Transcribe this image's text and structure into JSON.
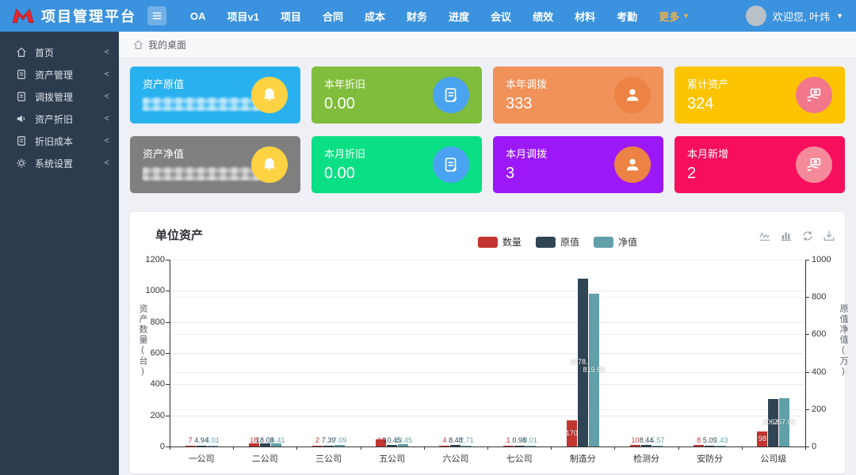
{
  "topbar": {
    "title": "项目管理平台",
    "nav": [
      "OA",
      "项目v1",
      "项目",
      "合同",
      "成本",
      "财务",
      "进度",
      "会议",
      "绩效",
      "材料",
      "考勤"
    ],
    "more_label": "更多",
    "more_color": "#f3b245",
    "welcome": "欢迎您, 叶炜",
    "bar_color": "#3b92de"
  },
  "sidebar": {
    "items": [
      {
        "icon": "home-icon",
        "label": "首页"
      },
      {
        "icon": "file-icon",
        "label": "资产管理"
      },
      {
        "icon": "file-icon",
        "label": "调拨管理"
      },
      {
        "icon": "volume-icon",
        "label": "资产折旧"
      },
      {
        "icon": "file-icon",
        "label": "折旧成本"
      },
      {
        "icon": "gear-icon",
        "label": "系统设置"
      }
    ],
    "chevron": "<"
  },
  "breadcrumb": "我的桌面",
  "cards": [
    {
      "label": "资产原值",
      "value": "",
      "masked": true,
      "color": "#29b1ef",
      "icon": "bell-icon",
      "icon_bg": "#fdd243"
    },
    {
      "label": "本年折旧",
      "value": "0.00",
      "masked": false,
      "color": "#80bd3c",
      "icon": "clipboard-icon",
      "icon_bg": "#4aa3f0"
    },
    {
      "label": "本年调拨",
      "value": "333",
      "masked": false,
      "color": "#f0925a",
      "icon": "user-icon",
      "icon_bg": "#ec8243"
    },
    {
      "label": "累计资产",
      "value": "324",
      "masked": false,
      "color": "#fcc400",
      "icon": "hand-coin-icon",
      "icon_bg": "#f2778b"
    },
    {
      "label": "资产净值",
      "value": "",
      "masked": true,
      "color": "#7f7f7f",
      "icon": "bell-icon",
      "icon_bg": "#fdd243"
    },
    {
      "label": "本月折旧",
      "value": "0.00",
      "masked": false,
      "color": "#0bdf85",
      "icon": "clipboard-icon",
      "icon_bg": "#4aa3f0"
    },
    {
      "label": "本月调拨",
      "value": "3",
      "masked": false,
      "color": "#9c18f8",
      "icon": "user-icon",
      "icon_bg": "#ec8243"
    },
    {
      "label": "本月新增",
      "value": "2",
      "masked": false,
      "color": "#f70f5e",
      "icon": "hand-coin-icon",
      "icon_bg": "#f58a9b"
    }
  ],
  "chart_data": {
    "type": "bar",
    "title": "单位资产",
    "categories": [
      "一公司",
      "二公司",
      "三公司",
      "五公司",
      "六公司",
      "七公司",
      "制造分",
      "检测分",
      "安防分",
      "公司级"
    ],
    "series": [
      {
        "name": "数量",
        "color": "#c23531",
        "axis": "left",
        "values": [
          7,
          18,
          2,
          44,
          4,
          1,
          170,
          10,
          8,
          98
        ]
      },
      {
        "name": "原值",
        "color": "#2f4554",
        "axis": "left",
        "values": [
          4.94,
          18.08,
          7.39,
          10.45,
          8.48,
          0.98,
          1078.36,
          8.44,
          5.09,
          306.62
        ]
      },
      {
        "name": "净值",
        "color": "#61a0a8",
        "axis": "right",
        "values": [
          4.01,
          16.41,
          7.09,
          13.45,
          2.71,
          0.01,
          819.69,
          5.57,
          1.43,
          257.02
        ]
      }
    ],
    "left_axis": {
      "label": "资产数量(台)",
      "ticks": [
        0,
        200,
        400,
        600,
        800,
        1000,
        1200
      ],
      "max": 1200
    },
    "right_axis": {
      "label": "原值净值(万)",
      "ticks": [
        0,
        200,
        400,
        600,
        800,
        1000
      ],
      "max": 1000
    },
    "legend": [
      "数量",
      "原值",
      "净值"
    ],
    "legend_position": "top-center",
    "grid": true
  }
}
